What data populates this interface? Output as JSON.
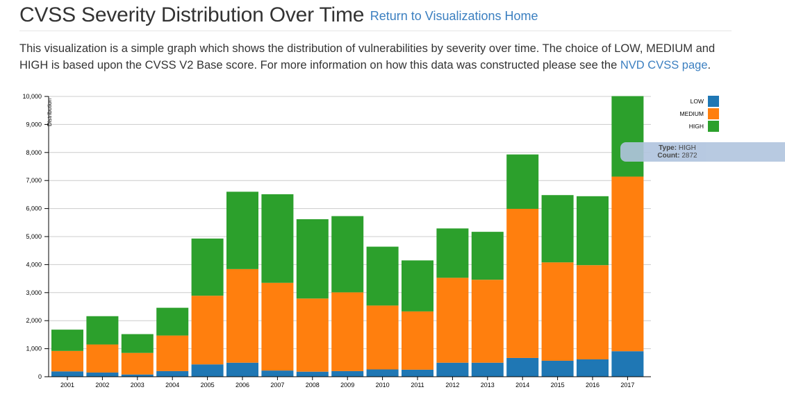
{
  "header": {
    "title": "CVSS Severity Distribution Over Time",
    "home_link": "Return to Visualizations Home"
  },
  "description": {
    "text": "This visualization is a simple graph which shows the distribution of vulnerabilities by severity over time. The choice of LOW, MEDIUM and HIGH is based upon the CVSS V2 Base score. For more information on how this data was constructed please see the ",
    "link": "NVD CVSS page",
    "end": "."
  },
  "tooltip": {
    "type_label": "Type:",
    "type_value": "HIGH",
    "count_label": "Count:",
    "count_value": "2872"
  },
  "colors": {
    "LOW": "#1f77b4",
    "MEDIUM": "#ff7f0e",
    "HIGH": "#2ca02c",
    "link": "#3b7fc0",
    "tooltip_bg": "#b0c4de"
  },
  "chart_data": {
    "type": "bar",
    "stacked": true,
    "categories": [
      "2001",
      "2002",
      "2003",
      "2004",
      "2005",
      "2006",
      "2007",
      "2008",
      "2009",
      "2010",
      "2011",
      "2012",
      "2013",
      "2014",
      "2015",
      "2016",
      "2017"
    ],
    "series": [
      {
        "name": "LOW",
        "values": [
          190,
          150,
          80,
          200,
          440,
          500,
          220,
          180,
          200,
          260,
          250,
          500,
          500,
          670,
          570,
          620,
          910
        ]
      },
      {
        "name": "MEDIUM",
        "values": [
          730,
          1000,
          770,
          1270,
          2450,
          3340,
          3130,
          2610,
          2810,
          2280,
          2080,
          3030,
          2960,
          5320,
          3510,
          3360,
          6230
        ]
      },
      {
        "name": "HIGH",
        "values": [
          760,
          1010,
          670,
          990,
          2040,
          2760,
          3160,
          2830,
          2720,
          2100,
          1820,
          1760,
          1710,
          1940,
          2400,
          2460,
          2872
        ]
      }
    ],
    "ylabel": "Distribution",
    "xlabel": "",
    "ylim": [
      0,
      10000
    ],
    "yticks": [
      0,
      1000,
      2000,
      3000,
      4000,
      5000,
      6000,
      7000,
      8000,
      9000,
      10000
    ],
    "yticks_display": [
      "0",
      "1,000",
      "2,000",
      "3,000",
      "4,000",
      "5,000",
      "6,000",
      "7,000",
      "8,000",
      "9,000",
      "10,000"
    ],
    "grid": true,
    "legend_position": "top-right"
  }
}
